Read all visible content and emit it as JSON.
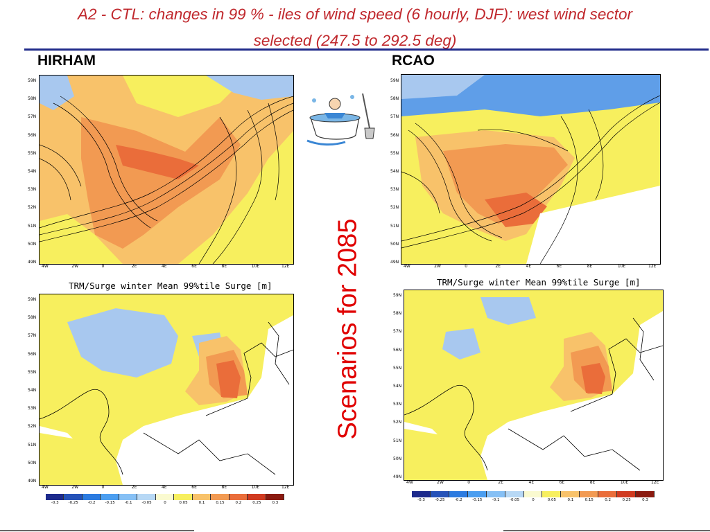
{
  "title_line1": "A2 - CTL: changes in 99 % - iles of wind speed (6 hourly, DJF): west wind sector",
  "title_line2": "selected (247.5 to 292.5 deg)",
  "left_label": "HIRHAM",
  "right_label": "RCAO",
  "vertical_text": "Scenarios for 2085",
  "surge_title": "TRM/Surge winter Mean 99%tile Surge [m]",
  "lat_labels": [
    "59N",
    "58N",
    "57N",
    "56N",
    "55N",
    "54N",
    "53N",
    "52N",
    "51N",
    "50N",
    "49N"
  ],
  "lon_labels_wind": [
    "4W",
    "2W",
    "0",
    "2E",
    "4E",
    "6E",
    "8E",
    "10E",
    "12E"
  ],
  "lon_labels_surge": [
    "4W",
    "2W",
    "0",
    "2E",
    "4E",
    "6E",
    "8E",
    "10E",
    "12E"
  ],
  "colorbar_labels": [
    "-0.3",
    "-0.25",
    "-0.2",
    "-0.15",
    "-0.1",
    "-0.05",
    "0",
    "0.05",
    "0.1",
    "0.15",
    "0.2",
    "0.25",
    "0.3"
  ],
  "colors": {
    "title": "#c0282d",
    "rule": "#1f2a8a",
    "vertical": "#e00000",
    "blue_light": "#a8c8ef",
    "blue_mid": "#5f9ee8",
    "yellow": "#f7ef5e",
    "orange_light": "#f8c26a",
    "orange": "#f29a52",
    "orange_dark": "#ea6d3a",
    "red": "#d94a2a"
  },
  "colorbar_colors": [
    "#1d2a8c",
    "#2552b8",
    "#2c7be0",
    "#4b9ef0",
    "#86c0f5",
    "#b7d8f5",
    "#fafad0",
    "#f7ef5e",
    "#f8c26a",
    "#f29a52",
    "#ea6d3a",
    "#d03a20",
    "#8a1a10"
  ]
}
